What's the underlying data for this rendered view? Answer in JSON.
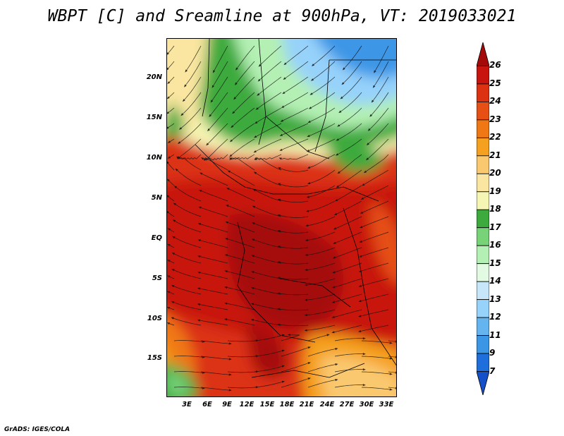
{
  "title": "WBPT [C] and Sreamline at 900hPa, VT: 2019033021",
  "footer": "GrADS: IGES/COLA",
  "latitude_labels": [
    "20N",
    "15N",
    "10N",
    "5N",
    "EQ",
    "5S",
    "10S",
    "15S"
  ],
  "longitude_labels": [
    "3E",
    "6E",
    "9E",
    "12E",
    "15E",
    "18E",
    "21E",
    "24E",
    "27E",
    "30E",
    "33E"
  ],
  "colorbar": {
    "labels": [
      "26",
      "25",
      "24",
      "23",
      "22",
      "21",
      "20",
      "19",
      "18",
      "17",
      "16",
      "15",
      "14",
      "13",
      "12",
      "11",
      "9",
      "7"
    ],
    "colors": [
      "#a50a0a",
      "#c8140f",
      "#dc3212",
      "#e65014",
      "#f07814",
      "#f5a01e",
      "#fac86e",
      "#fae6a0",
      "#f5f5b4",
      "#3caa3c",
      "#78d278",
      "#b4f0b4",
      "#e1fae1",
      "#c8e6fa",
      "#96d2fa",
      "#64b4f0",
      "#3c96e6",
      "#1e6edc",
      "#1450c8"
    ]
  },
  "map": {
    "description_field": "wet-bulb potential temperature",
    "streamlines": true
  }
}
